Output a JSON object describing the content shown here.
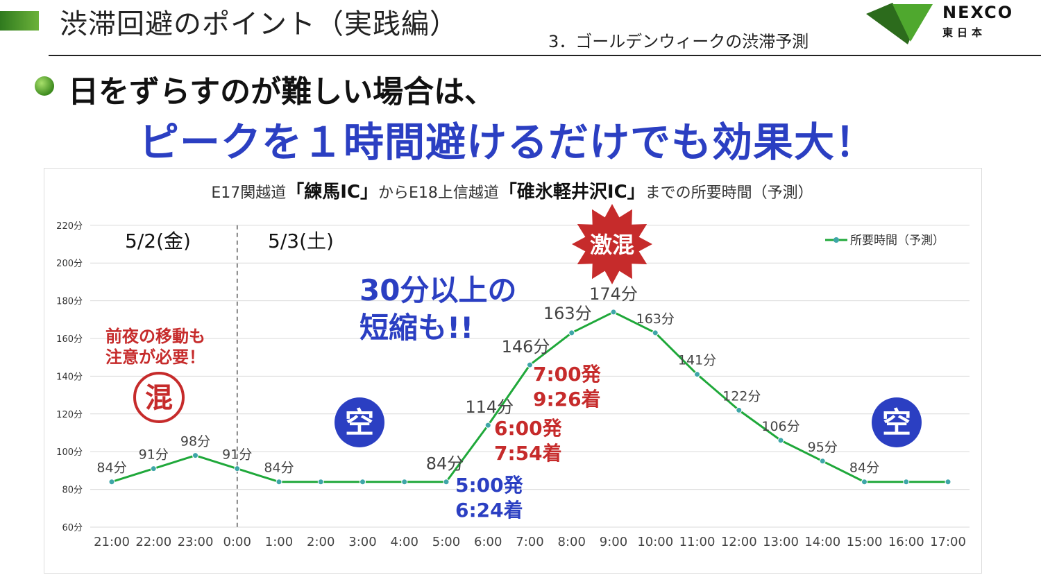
{
  "header": {
    "title": "渋滞回避のポイント（実践編）",
    "subtitle": "3．ゴールデンウィークの渋滞予測",
    "logo_text": "NEXCO",
    "logo_sub": "東日本"
  },
  "headline": {
    "line1": "日をずらすのが難しい場合は、",
    "line2": "ピークを１時間避けるだけでも効果大！"
  },
  "chart_data": {
    "type": "line",
    "title_parts": {
      "prefix": "E17関越道",
      "from": "「練馬IC」",
      "mid": "からE18上信越道",
      "to": "「碓氷軽井沢IC」",
      "suffix": "までの所要時間（予測）"
    },
    "categories": [
      "21:00",
      "22:00",
      "23:00",
      "0:00",
      "1:00",
      "2:00",
      "3:00",
      "4:00",
      "5:00",
      "6:00",
      "7:00",
      "8:00",
      "9:00",
      "10:00",
      "11:00",
      "12:00",
      "13:00",
      "14:00",
      "15:00",
      "16:00",
      "17:00"
    ],
    "series": [
      {
        "name": "所要時間（予測）",
        "color": "#1fa83a",
        "values": [
          84,
          91,
          98,
          91,
          84,
          84,
          84,
          84,
          84,
          114,
          146,
          163,
          174,
          163,
          141,
          122,
          106,
          95,
          84,
          84,
          84
        ],
        "labels": [
          "84分",
          "91分",
          "98分",
          "91分",
          "84分",
          "",
          "",
          "",
          "84分",
          "114分",
          "146分",
          "163分",
          "174分",
          "163分",
          "141分",
          "122分",
          "106分",
          "95分",
          "84分",
          "",
          ""
        ]
      }
    ],
    "ylim": [
      60,
      220
    ],
    "y_ticks": [
      {
        "v": 60,
        "label": "60分"
      },
      {
        "v": 80,
        "label": "80分"
      },
      {
        "v": 100,
        "label": "100分"
      },
      {
        "v": 120,
        "label": "120分"
      },
      {
        "v": 140,
        "label": "140分"
      },
      {
        "v": 160,
        "label": "160分"
      },
      {
        "v": 180,
        "label": "180分"
      },
      {
        "v": 200,
        "label": "200分"
      },
      {
        "v": 220,
        "label": "220分"
      }
    ],
    "grid": true,
    "legend_position": "top-right",
    "date_divider_category": "0:00"
  },
  "annotations": {
    "date1": "5/2(金)",
    "date2": "5/3(土)",
    "night_warning_line1": "前夜の移動も",
    "night_warning_line2": "注意が必要！",
    "busy_badge": "混",
    "empty_badge_left": "空",
    "empty_badge_right": "空",
    "peak_badge": "激混",
    "shortening_line1": "30分以上の",
    "shortening_line2": "短縮も!!",
    "dep_0500": "5:00発",
    "arr_0500": "6:24着",
    "dep_0600": "6:00発",
    "arr_0600": "7:54着",
    "dep_0700": "7:00発",
    "arr_0700": "9:26着"
  },
  "colors": {
    "accent_blue": "#2b3fc2",
    "accent_red": "#c62b2b",
    "line_green": "#1fa83a",
    "marker_teal": "#3ea6a8"
  }
}
